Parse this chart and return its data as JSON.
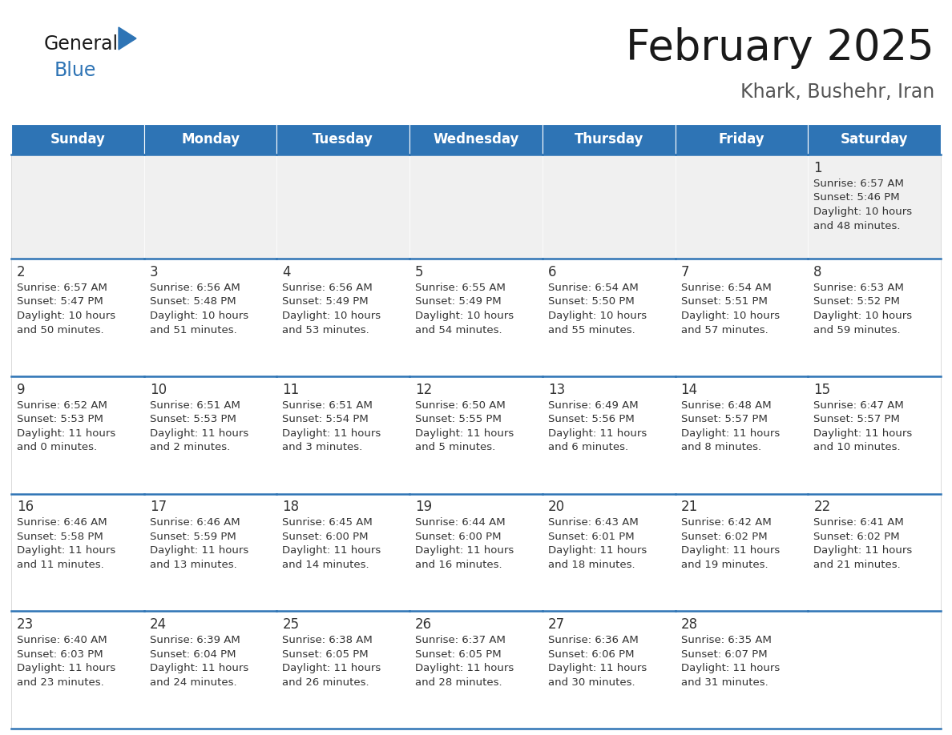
{
  "title": "February 2025",
  "subtitle": "Khark, Bushehr, Iran",
  "days_of_week": [
    "Sunday",
    "Monday",
    "Tuesday",
    "Wednesday",
    "Thursday",
    "Friday",
    "Saturday"
  ],
  "header_bg": "#2E74B5",
  "header_text": "#FFFFFF",
  "cell_bg_light": "#F0F0F0",
  "cell_bg_white": "#FFFFFF",
  "cell_border": "#2E74B5",
  "text_color": "#333333",
  "title_color": "#1a1a1a",
  "subtitle_color": "#555555",
  "calendar": [
    [
      null,
      null,
      null,
      null,
      null,
      null,
      1
    ],
    [
      2,
      3,
      4,
      5,
      6,
      7,
      8
    ],
    [
      9,
      10,
      11,
      12,
      13,
      14,
      15
    ],
    [
      16,
      17,
      18,
      19,
      20,
      21,
      22
    ],
    [
      23,
      24,
      25,
      26,
      27,
      28,
      null
    ]
  ],
  "sun_data": {
    "1": {
      "sunrise": "6:57 AM",
      "sunset": "5:46 PM",
      "daylight_h": "10 hours",
      "daylight_m": "and 48 minutes."
    },
    "2": {
      "sunrise": "6:57 AM",
      "sunset": "5:47 PM",
      "daylight_h": "10 hours",
      "daylight_m": "and 50 minutes."
    },
    "3": {
      "sunrise": "6:56 AM",
      "sunset": "5:48 PM",
      "daylight_h": "10 hours",
      "daylight_m": "and 51 minutes."
    },
    "4": {
      "sunrise": "6:56 AM",
      "sunset": "5:49 PM",
      "daylight_h": "10 hours",
      "daylight_m": "and 53 minutes."
    },
    "5": {
      "sunrise": "6:55 AM",
      "sunset": "5:49 PM",
      "daylight_h": "10 hours",
      "daylight_m": "and 54 minutes."
    },
    "6": {
      "sunrise": "6:54 AM",
      "sunset": "5:50 PM",
      "daylight_h": "10 hours",
      "daylight_m": "and 55 minutes."
    },
    "7": {
      "sunrise": "6:54 AM",
      "sunset": "5:51 PM",
      "daylight_h": "10 hours",
      "daylight_m": "and 57 minutes."
    },
    "8": {
      "sunrise": "6:53 AM",
      "sunset": "5:52 PM",
      "daylight_h": "10 hours",
      "daylight_m": "and 59 minutes."
    },
    "9": {
      "sunrise": "6:52 AM",
      "sunset": "5:53 PM",
      "daylight_h": "11 hours",
      "daylight_m": "and 0 minutes."
    },
    "10": {
      "sunrise": "6:51 AM",
      "sunset": "5:53 PM",
      "daylight_h": "11 hours",
      "daylight_m": "and 2 minutes."
    },
    "11": {
      "sunrise": "6:51 AM",
      "sunset": "5:54 PM",
      "daylight_h": "11 hours",
      "daylight_m": "and 3 minutes."
    },
    "12": {
      "sunrise": "6:50 AM",
      "sunset": "5:55 PM",
      "daylight_h": "11 hours",
      "daylight_m": "and 5 minutes."
    },
    "13": {
      "sunrise": "6:49 AM",
      "sunset": "5:56 PM",
      "daylight_h": "11 hours",
      "daylight_m": "and 6 minutes."
    },
    "14": {
      "sunrise": "6:48 AM",
      "sunset": "5:57 PM",
      "daylight_h": "11 hours",
      "daylight_m": "and 8 minutes."
    },
    "15": {
      "sunrise": "6:47 AM",
      "sunset": "5:57 PM",
      "daylight_h": "11 hours",
      "daylight_m": "and 10 minutes."
    },
    "16": {
      "sunrise": "6:46 AM",
      "sunset": "5:58 PM",
      "daylight_h": "11 hours",
      "daylight_m": "and 11 minutes."
    },
    "17": {
      "sunrise": "6:46 AM",
      "sunset": "5:59 PM",
      "daylight_h": "11 hours",
      "daylight_m": "and 13 minutes."
    },
    "18": {
      "sunrise": "6:45 AM",
      "sunset": "6:00 PM",
      "daylight_h": "11 hours",
      "daylight_m": "and 14 minutes."
    },
    "19": {
      "sunrise": "6:44 AM",
      "sunset": "6:00 PM",
      "daylight_h": "11 hours",
      "daylight_m": "and 16 minutes."
    },
    "20": {
      "sunrise": "6:43 AM",
      "sunset": "6:01 PM",
      "daylight_h": "11 hours",
      "daylight_m": "and 18 minutes."
    },
    "21": {
      "sunrise": "6:42 AM",
      "sunset": "6:02 PM",
      "daylight_h": "11 hours",
      "daylight_m": "and 19 minutes."
    },
    "22": {
      "sunrise": "6:41 AM",
      "sunset": "6:02 PM",
      "daylight_h": "11 hours",
      "daylight_m": "and 21 minutes."
    },
    "23": {
      "sunrise": "6:40 AM",
      "sunset": "6:03 PM",
      "daylight_h": "11 hours",
      "daylight_m": "and 23 minutes."
    },
    "24": {
      "sunrise": "6:39 AM",
      "sunset": "6:04 PM",
      "daylight_h": "11 hours",
      "daylight_m": "and 24 minutes."
    },
    "25": {
      "sunrise": "6:38 AM",
      "sunset": "6:05 PM",
      "daylight_h": "11 hours",
      "daylight_m": "and 26 minutes."
    },
    "26": {
      "sunrise": "6:37 AM",
      "sunset": "6:05 PM",
      "daylight_h": "11 hours",
      "daylight_m": "and 28 minutes."
    },
    "27": {
      "sunrise": "6:36 AM",
      "sunset": "6:06 PM",
      "daylight_h": "11 hours",
      "daylight_m": "and 30 minutes."
    },
    "28": {
      "sunrise": "6:35 AM",
      "sunset": "6:07 PM",
      "daylight_h": "11 hours",
      "daylight_m": "and 31 minutes."
    }
  }
}
